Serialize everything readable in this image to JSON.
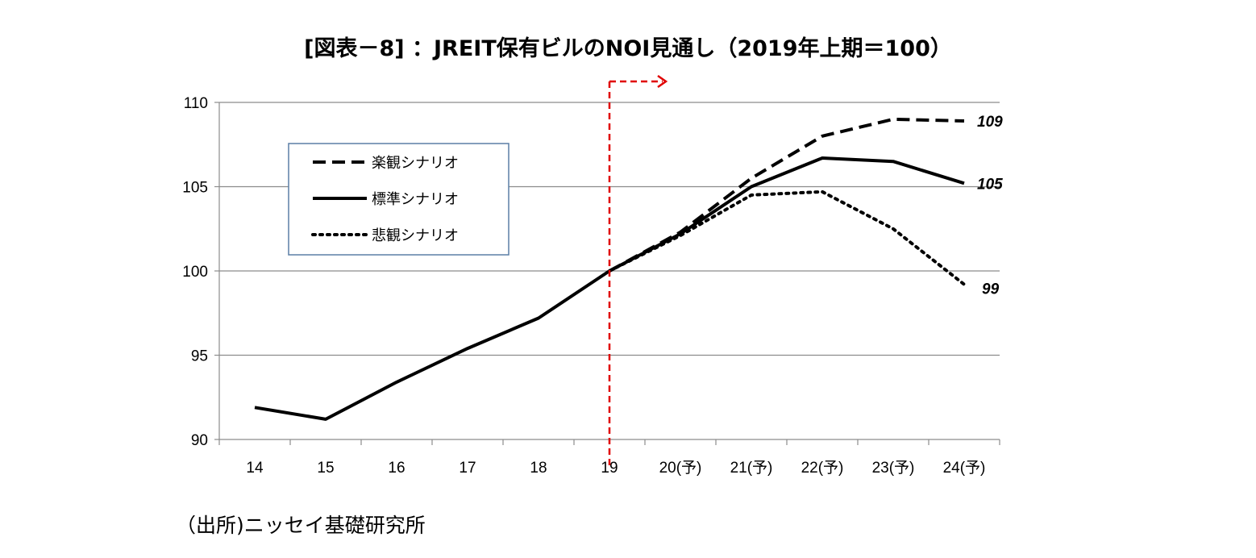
{
  "chart_data": {
    "type": "line",
    "title": "[図表－8] ：JREIT保有ビルのNOI見通し（2019年上期＝100）",
    "categories": [
      "14",
      "15",
      "16",
      "17",
      "18",
      "19",
      "20(予)",
      "21(予)",
      "22(予)",
      "23(予)",
      "24(予)"
    ],
    "series": [
      {
        "name": "楽観シナリオ",
        "style": "dashed",
        "values": [
          null,
          null,
          null,
          null,
          null,
          100.0,
          102.3,
          105.5,
          108.0,
          109.0,
          108.9
        ]
      },
      {
        "name": "標準シナリオ",
        "style": "solid",
        "values": [
          91.9,
          91.2,
          93.4,
          95.4,
          97.2,
          100.0,
          102.2,
          105.0,
          106.7,
          106.5,
          105.2
        ]
      },
      {
        "name": "悲観シナリオ",
        "style": "dotted",
        "values": [
          null,
          null,
          null,
          null,
          null,
          100.0,
          102.1,
          104.5,
          104.7,
          102.5,
          99.2
        ]
      }
    ],
    "end_labels": [
      "109",
      "105",
      "99"
    ],
    "ylim": [
      90,
      110
    ],
    "yticks": [
      90,
      95,
      100,
      105,
      110
    ],
    "gridlines": true,
    "legend_position": "top-left inside",
    "forecast_marker": {
      "at_category": "19",
      "color": "#e00000"
    },
    "xlabel": "",
    "ylabel": ""
  },
  "source": "（出所)ニッセイ基礎研究所"
}
